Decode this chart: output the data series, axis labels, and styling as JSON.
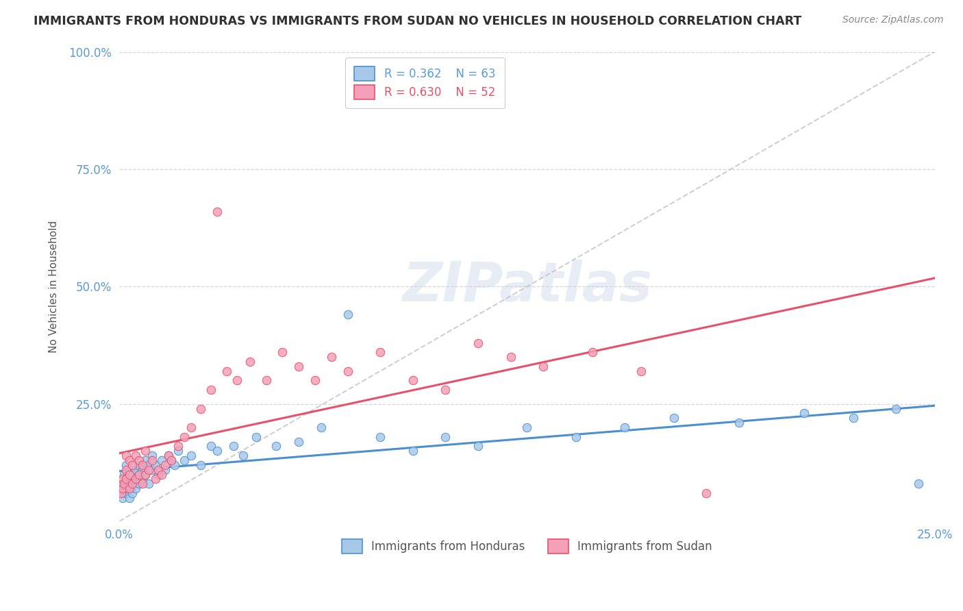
{
  "title": "IMMIGRANTS FROM HONDURAS VS IMMIGRANTS FROM SUDAN NO VEHICLES IN HOUSEHOLD CORRELATION CHART",
  "source": "Source: ZipAtlas.com",
  "ylabel": "No Vehicles in Household",
  "xlim": [
    0.0,
    0.25
  ],
  "ylim": [
    0.0,
    1.0
  ],
  "color_honduras": "#a8c8e8",
  "color_sudan": "#f4a0b8",
  "trendline_color_honduras": "#4a90d0",
  "trendline_color_sudan": "#e8506a",
  "watermark": "ZIPatlas",
  "legend_label1": "Immigrants from Honduras",
  "legend_label2": "Immigrants from Sudan",
  "honduras_x": [
    0.0008,
    0.001,
    0.001,
    0.0015,
    0.0015,
    0.002,
    0.002,
    0.002,
    0.0025,
    0.003,
    0.003,
    0.003,
    0.0035,
    0.004,
    0.004,
    0.004,
    0.005,
    0.005,
    0.005,
    0.006,
    0.006,
    0.006,
    0.007,
    0.007,
    0.008,
    0.008,
    0.009,
    0.009,
    0.01,
    0.01,
    0.011,
    0.012,
    0.013,
    0.014,
    0.015,
    0.016,
    0.017,
    0.018,
    0.02,
    0.022,
    0.025,
    0.028,
    0.03,
    0.035,
    0.038,
    0.042,
    0.048,
    0.055,
    0.062,
    0.07,
    0.08,
    0.09,
    0.1,
    0.11,
    0.125,
    0.14,
    0.155,
    0.17,
    0.19,
    0.21,
    0.225,
    0.238,
    0.245
  ],
  "honduras_y": [
    0.06,
    0.08,
    0.05,
    0.07,
    0.1,
    0.06,
    0.09,
    0.12,
    0.07,
    0.08,
    0.05,
    0.11,
    0.07,
    0.09,
    0.06,
    0.1,
    0.08,
    0.11,
    0.07,
    0.1,
    0.08,
    0.12,
    0.09,
    0.11,
    0.1,
    0.13,
    0.08,
    0.12,
    0.11,
    0.14,
    0.12,
    0.1,
    0.13,
    0.11,
    0.14,
    0.13,
    0.12,
    0.15,
    0.13,
    0.14,
    0.12,
    0.16,
    0.15,
    0.16,
    0.14,
    0.18,
    0.16,
    0.17,
    0.2,
    0.44,
    0.18,
    0.15,
    0.18,
    0.16,
    0.2,
    0.18,
    0.2,
    0.22,
    0.21,
    0.23,
    0.22,
    0.24,
    0.08
  ],
  "sudan_x": [
    0.0005,
    0.001,
    0.001,
    0.0015,
    0.002,
    0.002,
    0.002,
    0.003,
    0.003,
    0.003,
    0.004,
    0.004,
    0.005,
    0.005,
    0.006,
    0.006,
    0.007,
    0.007,
    0.008,
    0.008,
    0.009,
    0.01,
    0.011,
    0.012,
    0.013,
    0.014,
    0.015,
    0.016,
    0.018,
    0.02,
    0.022,
    0.025,
    0.028,
    0.03,
    0.033,
    0.036,
    0.04,
    0.045,
    0.05,
    0.055,
    0.06,
    0.065,
    0.07,
    0.08,
    0.09,
    0.1,
    0.11,
    0.12,
    0.13,
    0.145,
    0.16,
    0.18
  ],
  "sudan_y": [
    0.06,
    0.07,
    0.09,
    0.08,
    0.09,
    0.11,
    0.14,
    0.07,
    0.1,
    0.13,
    0.08,
    0.12,
    0.09,
    0.14,
    0.1,
    0.13,
    0.08,
    0.12,
    0.1,
    0.15,
    0.11,
    0.13,
    0.09,
    0.11,
    0.1,
    0.12,
    0.14,
    0.13,
    0.16,
    0.18,
    0.2,
    0.24,
    0.28,
    0.66,
    0.32,
    0.3,
    0.34,
    0.3,
    0.36,
    0.33,
    0.3,
    0.35,
    0.32,
    0.36,
    0.3,
    0.28,
    0.38,
    0.35,
    0.33,
    0.36,
    0.32,
    0.06
  ]
}
